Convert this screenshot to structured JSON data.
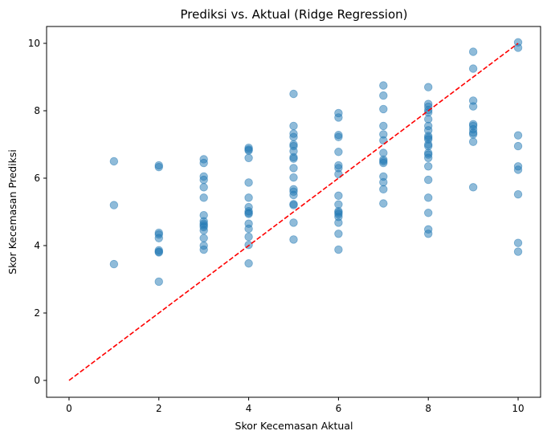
{
  "chart_data": {
    "type": "scatter",
    "title": "Prediksi vs. Aktual (Ridge Regression)",
    "xlabel": "Skor Kecemasan Aktual",
    "ylabel": "Skor Kecemasan Prediksi",
    "xlim": [
      -0.5,
      10.5
    ],
    "ylim": [
      -0.5,
      10.5
    ],
    "xticks": [
      "0",
      "2",
      "4",
      "6",
      "8",
      "10"
    ],
    "yticks": [
      "0",
      "2",
      "4",
      "6",
      "8",
      "10"
    ],
    "grid": false,
    "point_color": "#1f77b4",
    "point_opacity": 0.5,
    "reference_line": {
      "from": [
        0,
        0
      ],
      "to": [
        10,
        10
      ],
      "color": "#ff0000",
      "style": "dashed"
    },
    "points": [
      [
        1,
        6.5
      ],
      [
        1,
        5.2
      ],
      [
        1,
        3.45
      ],
      [
        2,
        6.38
      ],
      [
        2,
        6.33
      ],
      [
        2,
        4.38
      ],
      [
        2,
        4.33
      ],
      [
        2,
        4.22
      ],
      [
        2,
        3.86
      ],
      [
        2,
        3.82
      ],
      [
        2,
        3.8
      ],
      [
        2,
        2.93
      ],
      [
        3,
        6.56
      ],
      [
        3,
        6.45
      ],
      [
        3,
        6.05
      ],
      [
        3,
        5.95
      ],
      [
        3,
        5.73
      ],
      [
        3,
        5.42
      ],
      [
        3,
        4.9
      ],
      [
        3,
        4.72
      ],
      [
        3,
        4.65
      ],
      [
        3,
        4.6
      ],
      [
        3,
        4.55
      ],
      [
        3,
        4.45
      ],
      [
        3,
        4.22
      ],
      [
        3,
        4.0
      ],
      [
        3,
        3.88
      ],
      [
        4,
        6.9
      ],
      [
        4,
        6.85
      ],
      [
        4,
        6.82
      ],
      [
        4,
        6.6
      ],
      [
        4,
        5.87
      ],
      [
        4,
        5.42
      ],
      [
        4,
        5.14
      ],
      [
        4,
        5.02
      ],
      [
        4,
        4.97
      ],
      [
        4,
        4.94
      ],
      [
        4,
        4.65
      ],
      [
        4,
        4.5
      ],
      [
        4,
        4.26
      ],
      [
        4,
        4.02
      ],
      [
        4,
        3.47
      ],
      [
        5,
        8.5
      ],
      [
        5,
        7.55
      ],
      [
        5,
        7.32
      ],
      [
        5,
        7.22
      ],
      [
        5,
        7.0
      ],
      [
        5,
        6.95
      ],
      [
        5,
        6.8
      ],
      [
        5,
        6.62
      ],
      [
        5,
        6.58
      ],
      [
        5,
        6.3
      ],
      [
        5,
        6.02
      ],
      [
        5,
        5.67
      ],
      [
        5,
        5.6
      ],
      [
        5,
        5.5
      ],
      [
        5,
        5.23
      ],
      [
        5,
        5.2
      ],
      [
        5,
        4.68
      ],
      [
        5,
        4.18
      ],
      [
        6,
        7.93
      ],
      [
        6,
        7.8
      ],
      [
        6,
        7.28
      ],
      [
        6,
        7.22
      ],
      [
        6,
        6.78
      ],
      [
        6,
        6.38
      ],
      [
        6,
        6.3
      ],
      [
        6,
        6.12
      ],
      [
        6,
        5.48
      ],
      [
        6,
        5.22
      ],
      [
        6,
        5.02
      ],
      [
        6,
        4.98
      ],
      [
        6,
        4.93
      ],
      [
        6,
        4.85
      ],
      [
        6,
        4.68
      ],
      [
        6,
        4.35
      ],
      [
        6,
        3.88
      ],
      [
        7,
        8.75
      ],
      [
        7,
        8.45
      ],
      [
        7,
        8.05
      ],
      [
        7,
        7.55
      ],
      [
        7,
        7.3
      ],
      [
        7,
        7.12
      ],
      [
        7,
        6.75
      ],
      [
        7,
        6.55
      ],
      [
        7,
        6.5
      ],
      [
        7,
        6.45
      ],
      [
        7,
        6.05
      ],
      [
        7,
        5.88
      ],
      [
        7,
        5.67
      ],
      [
        7,
        5.25
      ],
      [
        8,
        8.7
      ],
      [
        8,
        8.2
      ],
      [
        8,
        8.12
      ],
      [
        8,
        8.02
      ],
      [
        8,
        7.95
      ],
      [
        8,
        7.75
      ],
      [
        8,
        7.55
      ],
      [
        8,
        7.42
      ],
      [
        8,
        7.25
      ],
      [
        8,
        7.2
      ],
      [
        8,
        7.15
      ],
      [
        8,
        7.0
      ],
      [
        8,
        6.95
      ],
      [
        8,
        6.75
      ],
      [
        8,
        6.7
      ],
      [
        8,
        6.6
      ],
      [
        8,
        6.35
      ],
      [
        8,
        5.95
      ],
      [
        8,
        5.42
      ],
      [
        8,
        4.97
      ],
      [
        8,
        4.48
      ],
      [
        8,
        4.35
      ],
      [
        9,
        9.75
      ],
      [
        9,
        9.25
      ],
      [
        9,
        8.3
      ],
      [
        9,
        8.13
      ],
      [
        9,
        7.6
      ],
      [
        9,
        7.55
      ],
      [
        9,
        7.45
      ],
      [
        9,
        7.35
      ],
      [
        9,
        7.3
      ],
      [
        9,
        7.08
      ],
      [
        9,
        5.73
      ],
      [
        10,
        10.03
      ],
      [
        10,
        9.87
      ],
      [
        10,
        7.27
      ],
      [
        10,
        6.95
      ],
      [
        10,
        6.35
      ],
      [
        10,
        6.25
      ],
      [
        10,
        5.52
      ],
      [
        10,
        4.08
      ],
      [
        10,
        3.82
      ]
    ]
  }
}
